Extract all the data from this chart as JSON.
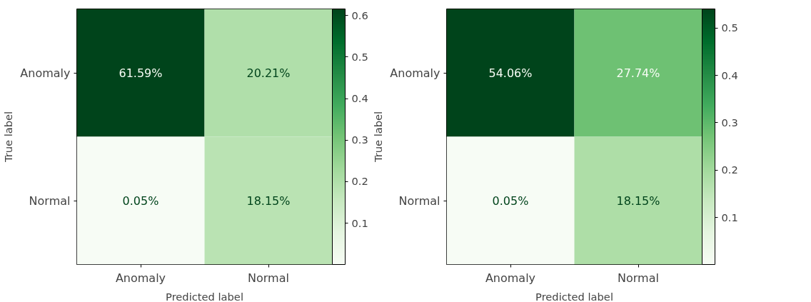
{
  "chart_data": [
    {
      "type": "heatmap",
      "categories": [
        "Anomaly",
        "Normal"
      ],
      "y_categories": [
        "Anomaly",
        "Normal"
      ],
      "cells": [
        [
          0.6159,
          0.2021
        ],
        [
          0.0005,
          0.1815
        ]
      ],
      "cell_labels": [
        [
          "61.59%",
          "20.21%"
        ],
        [
          "0.05%",
          "18.15%"
        ]
      ],
      "clim": [
        0.0005,
        0.6159
      ],
      "cticks": [
        0.1,
        0.2,
        0.3,
        0.4,
        0.5,
        0.6
      ],
      "xlabel": "Predicted label",
      "ylabel": "True label",
      "grid": false
    },
    {
      "type": "heatmap",
      "categories": [
        "Anomaly",
        "Normal"
      ],
      "y_categories": [
        "Anomaly",
        "Normal"
      ],
      "cells": [
        [
          0.5406,
          0.2774
        ],
        [
          0.0005,
          0.1815
        ]
      ],
      "cell_labels": [
        [
          "54.06%",
          "27.74%"
        ],
        [
          "0.05%",
          "18.15%"
        ]
      ],
      "clim": [
        0.0005,
        0.5406
      ],
      "cticks": [
        0.1,
        0.2,
        0.3,
        0.4,
        0.5
      ],
      "xlabel": "Predicted label",
      "ylabel": "True label",
      "grid": false
    }
  ]
}
